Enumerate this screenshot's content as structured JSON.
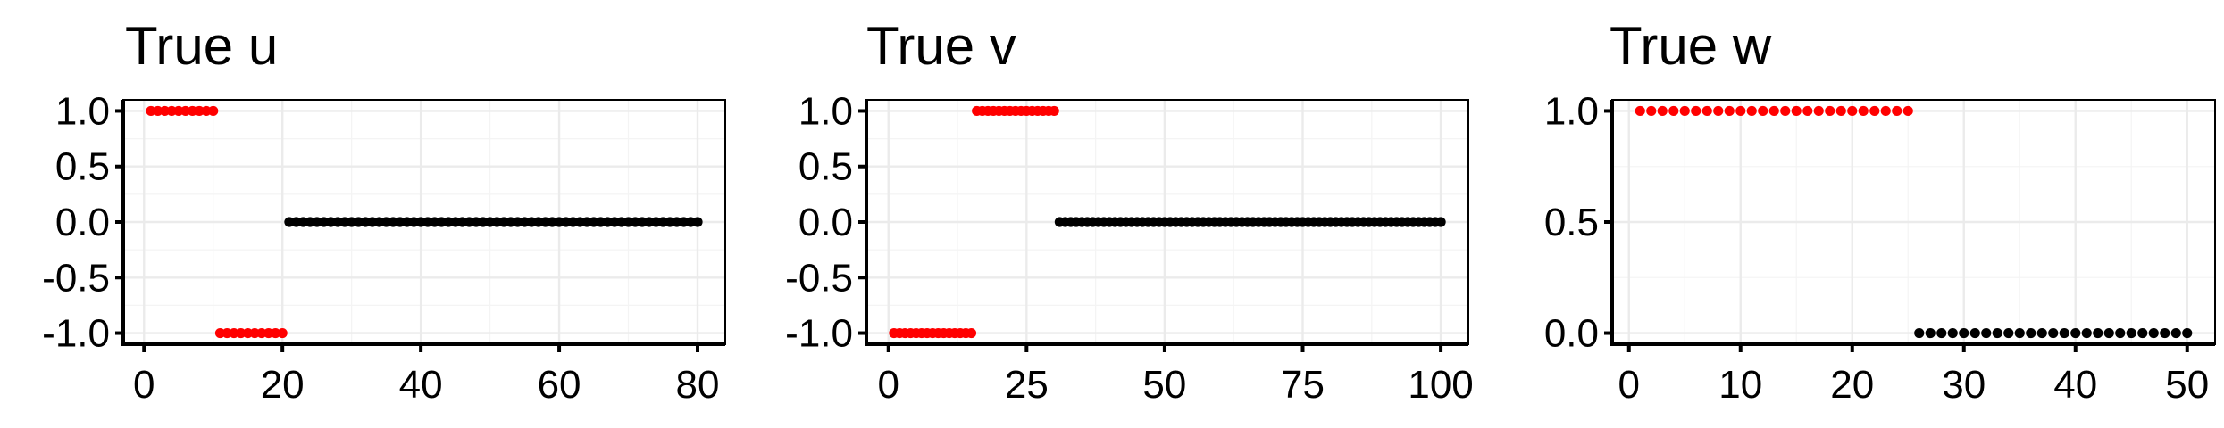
{
  "colors": {
    "nonzero": "#ff0000",
    "zero": "#000000",
    "grid_major": "#ebebeb",
    "grid_minor": "#f4f4f4"
  },
  "chart_data": [
    {
      "type": "scatter",
      "title": "True u",
      "xlabel": "",
      "ylabel": "",
      "xlim": [
        -3,
        84
      ],
      "ylim": [
        -1.1,
        1.1
      ],
      "x_ticks": [
        0,
        20,
        40,
        60,
        80
      ],
      "x_tick_labels": [
        "0",
        "20",
        "40",
        "60",
        "80"
      ],
      "y_ticks": [
        -1.0,
        -0.5,
        0.0,
        0.5,
        1.0
      ],
      "y_tick_labels": [
        "-1.0",
        "-0.5",
        "0.0",
        "0.5",
        "1.0"
      ],
      "grid": true,
      "legend": "none",
      "segments": [
        {
          "x_from": 1,
          "x_to": 10,
          "value": 1.0,
          "color": "#ff0000"
        },
        {
          "x_from": 11,
          "x_to": 20,
          "value": -1.0,
          "color": "#ff0000"
        },
        {
          "x_from": 21,
          "x_to": 80,
          "value": 0.0,
          "color": "#000000"
        }
      ]
    },
    {
      "type": "scatter",
      "title": "True v",
      "xlabel": "",
      "ylabel": "",
      "xlim": [
        -4,
        105
      ],
      "ylim": [
        -1.1,
        1.1
      ],
      "x_ticks": [
        0,
        25,
        50,
        75,
        100
      ],
      "x_tick_labels": [
        "0",
        "25",
        "50",
        "75",
        "100"
      ],
      "y_ticks": [
        -1.0,
        -0.5,
        0.0,
        0.5,
        1.0
      ],
      "y_tick_labels": [
        "-1.0",
        "-0.5",
        "0.0",
        "0.5",
        "1.0"
      ],
      "grid": true,
      "legend": "none",
      "segments": [
        {
          "x_from": 1,
          "x_to": 15,
          "value": -1.0,
          "color": "#ff0000"
        },
        {
          "x_from": 16,
          "x_to": 30,
          "value": 1.0,
          "color": "#ff0000"
        },
        {
          "x_from": 31,
          "x_to": 100,
          "value": 0.0,
          "color": "#000000"
        }
      ]
    },
    {
      "type": "scatter",
      "title": "True w",
      "xlabel": "",
      "ylabel": "",
      "xlim": [
        -1.5,
        52.5
      ],
      "ylim": [
        -0.05,
        1.05
      ],
      "x_ticks": [
        0,
        10,
        20,
        30,
        40,
        50
      ],
      "x_tick_labels": [
        "0",
        "10",
        "20",
        "30",
        "40",
        "50"
      ],
      "y_ticks": [
        0.0,
        0.5,
        1.0
      ],
      "y_tick_labels": [
        "0.0",
        "0.5",
        "1.0"
      ],
      "grid": true,
      "legend": "none",
      "segments": [
        {
          "x_from": 1,
          "x_to": 25,
          "value": 1.0,
          "color": "#ff0000"
        },
        {
          "x_from": 26,
          "x_to": 50,
          "value": 0.0,
          "color": "#000000"
        }
      ]
    }
  ]
}
